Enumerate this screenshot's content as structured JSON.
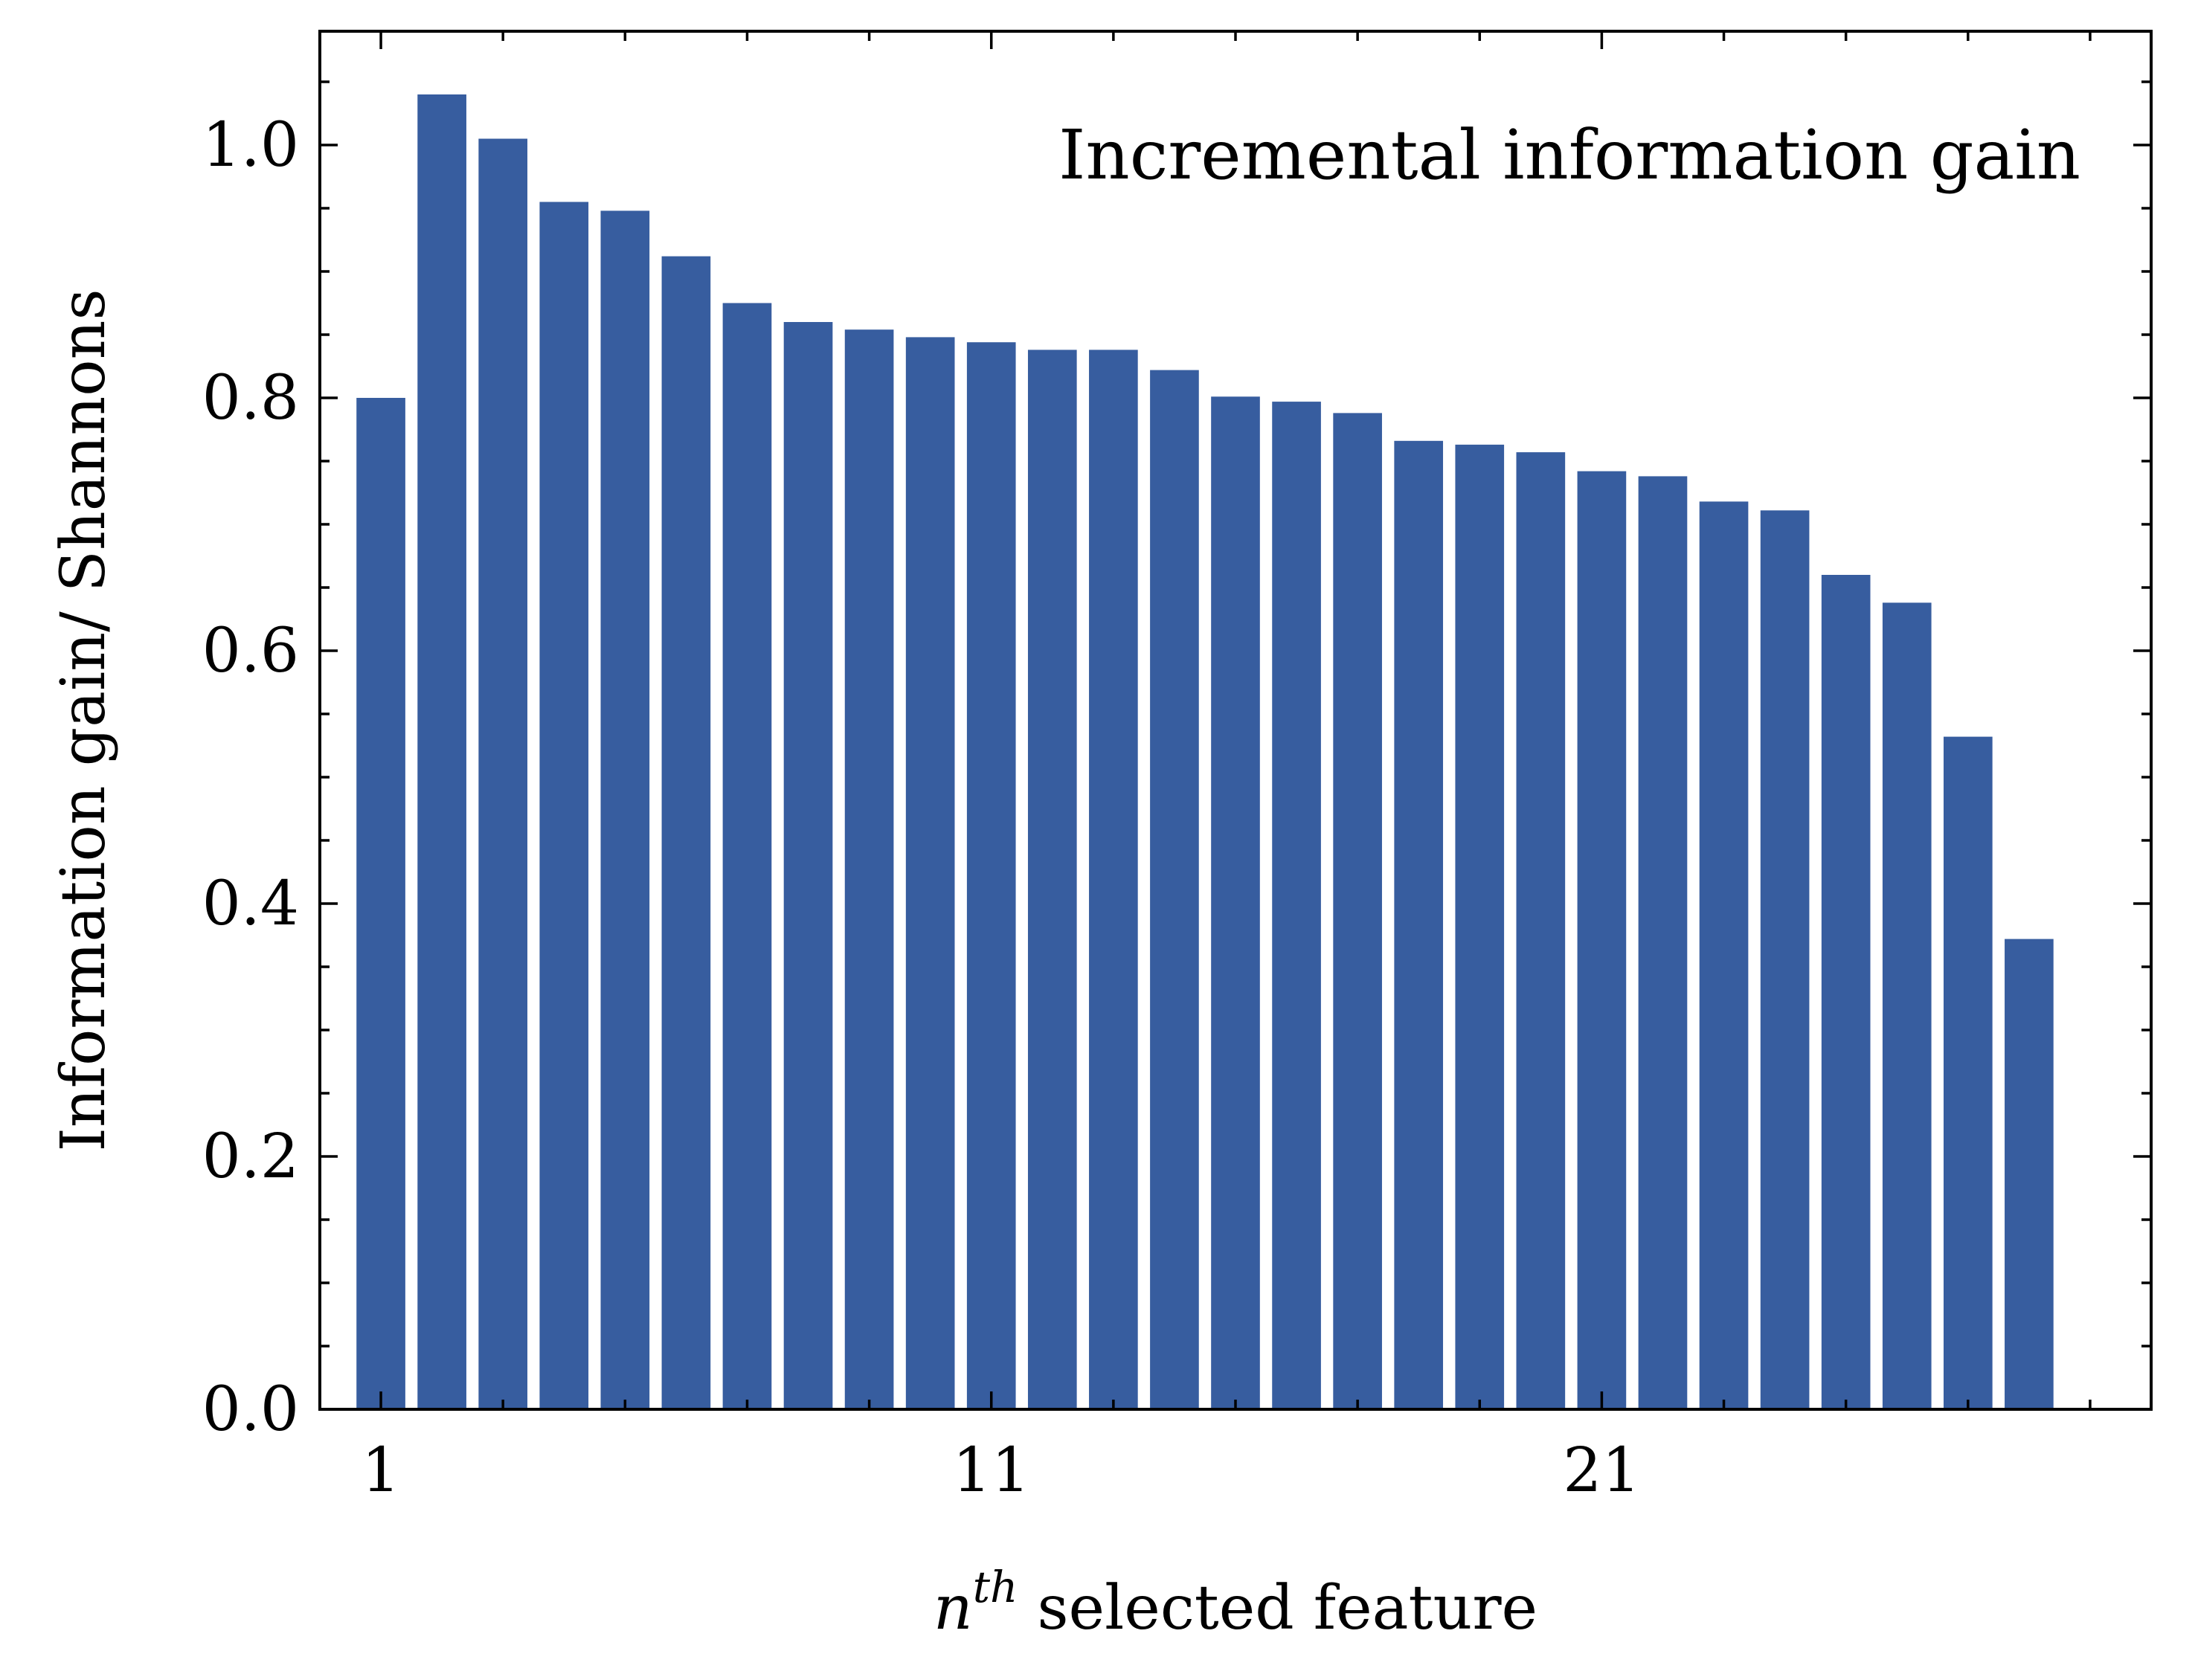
{
  "chart_data": {
    "type": "bar",
    "categories": [
      1,
      2,
      3,
      4,
      5,
      6,
      7,
      8,
      9,
      10,
      11,
      12,
      13,
      14,
      15,
      16,
      17,
      18,
      19,
      20,
      21,
      22,
      23,
      24,
      25,
      26,
      27,
      28
    ],
    "values": [
      0.8,
      1.04,
      1.005,
      0.955,
      0.948,
      0.912,
      0.875,
      0.86,
      0.854,
      0.848,
      0.844,
      0.838,
      0.838,
      0.822,
      0.801,
      0.797,
      0.788,
      0.766,
      0.763,
      0.757,
      0.742,
      0.738,
      0.718,
      0.711,
      0.66,
      0.638,
      0.532,
      0.372
    ],
    "xticks": [
      "1",
      "11",
      "21"
    ],
    "xtick_positions": [
      1,
      11,
      21
    ],
    "yticks": [
      "0.0",
      "0.2",
      "0.4",
      "0.6",
      "0.8",
      "1.0"
    ],
    "ytick_values": [
      0.0,
      0.2,
      0.4,
      0.6,
      0.8,
      1.0
    ],
    "xlabel_base": "n",
    "xlabel_sup": "th",
    "xlabel_rest": " selected feature",
    "ylabel": "Information gain/ Shannons",
    "annotation": "Incremental information gain",
    "xlim": [
      0,
      30
    ],
    "ylim": [
      0,
      1.09
    ],
    "bar_color": "#375d9f",
    "grid": false
  }
}
